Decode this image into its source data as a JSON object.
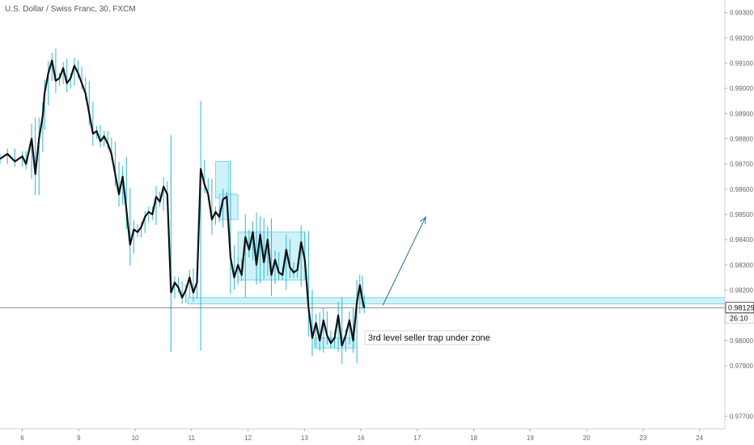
{
  "chart_data": {
    "type": "candlestick",
    "title": "U.S. Dollar / Swiss Franc, 30, FXCM",
    "xlabel": "",
    "ylabel": "",
    "ylim": [
      0.9765,
      0.9935
    ],
    "y_ticks": [
      "0.97700",
      "0.97900",
      "0.98000",
      "0.98200",
      "0.98300",
      "0.98400",
      "0.98500",
      "0.98600",
      "0.98700",
      "0.98800",
      "0.98900",
      "0.99000",
      "0.99100",
      "0.99200",
      "0.99300"
    ],
    "x_ticks": [
      "6",
      "9",
      "10",
      "11",
      "12",
      "13",
      "16",
      "17",
      "18",
      "19",
      "20",
      "23",
      "24"
    ],
    "x_range": [
      5.4,
      24.9
    ],
    "grid": false,
    "last_price": "0.98129",
    "countdown": "26:10",
    "price_path": [
      [
        5.4,
        0.9872
      ],
      [
        5.6,
        0.9874
      ],
      [
        5.8,
        0.9871
      ],
      [
        6.0,
        0.9873
      ],
      [
        6.1,
        0.987
      ],
      [
        6.25,
        0.988
      ],
      [
        6.35,
        0.9866
      ],
      [
        6.45,
        0.988
      ],
      [
        6.55,
        0.9889
      ],
      [
        6.6,
        0.9898
      ],
      [
        6.7,
        0.9906
      ],
      [
        6.8,
        0.9911
      ],
      [
        6.9,
        0.9903
      ],
      [
        7.0,
        0.9904
      ],
      [
        7.1,
        0.9908
      ],
      [
        7.2,
        0.9902
      ],
      [
        7.3,
        0.9904
      ],
      [
        7.4,
        0.9909
      ],
      [
        7.5,
        0.9906
      ],
      [
        7.6,
        0.9902
      ],
      [
        7.7,
        0.9898
      ],
      [
        7.8,
        0.989
      ],
      [
        7.9,
        0.9882
      ],
      [
        8.0,
        0.9883
      ],
      [
        8.1,
        0.9879
      ],
      [
        8.2,
        0.9881
      ],
      [
        8.3,
        0.9878
      ],
      [
        8.4,
        0.9874
      ],
      [
        8.5,
        0.9866
      ],
      [
        8.6,
        0.9858
      ],
      [
        8.7,
        0.9865
      ],
      [
        8.8,
        0.9852
      ],
      [
        8.9,
        0.9838
      ],
      [
        9.0,
        0.9844
      ],
      [
        9.1,
        0.9843
      ],
      [
        9.2,
        0.9845
      ],
      [
        9.3,
        0.9849
      ],
      [
        9.4,
        0.9851
      ],
      [
        9.5,
        0.985
      ],
      [
        9.6,
        0.9857
      ],
      [
        9.7,
        0.9855
      ],
      [
        9.8,
        0.9861
      ],
      [
        9.9,
        0.9858
      ],
      [
        10.0,
        0.9819
      ],
      [
        10.1,
        0.9823
      ],
      [
        10.2,
        0.9821
      ],
      [
        10.3,
        0.9817
      ],
      [
        10.4,
        0.982
      ],
      [
        10.5,
        0.9825
      ],
      [
        10.6,
        0.9819
      ],
      [
        10.7,
        0.9823
      ],
      [
        10.8,
        0.9868
      ],
      [
        10.9,
        0.9862
      ],
      [
        11.0,
        0.9858
      ],
      [
        11.1,
        0.9848
      ],
      [
        11.2,
        0.9851
      ],
      [
        11.3,
        0.9849
      ],
      [
        11.4,
        0.9856
      ],
      [
        11.5,
        0.9857
      ],
      [
        11.6,
        0.9833
      ],
      [
        11.7,
        0.9825
      ],
      [
        11.8,
        0.983
      ],
      [
        11.9,
        0.9826
      ],
      [
        12.0,
        0.9841
      ],
      [
        12.1,
        0.9836
      ],
      [
        12.2,
        0.9843
      ],
      [
        12.3,
        0.983
      ],
      [
        12.4,
        0.9842
      ],
      [
        12.5,
        0.9831
      ],
      [
        12.6,
        0.984
      ],
      [
        12.7,
        0.9826
      ],
      [
        12.8,
        0.9832
      ],
      [
        12.9,
        0.9827
      ],
      [
        13.0,
        0.9826
      ],
      [
        13.1,
        0.9836
      ],
      [
        13.2,
        0.9829
      ],
      [
        13.3,
        0.9827
      ],
      [
        13.4,
        0.9828
      ],
      [
        13.5,
        0.9839
      ],
      [
        13.6,
        0.9832
      ],
      [
        13.7,
        0.9813
      ],
      [
        13.8,
        0.9801
      ],
      [
        13.9,
        0.9807
      ],
      [
        14.0,
        0.98
      ],
      [
        14.1,
        0.9808
      ],
      [
        14.2,
        0.9802
      ],
      [
        14.3,
        0.9799
      ],
      [
        14.4,
        0.9801
      ],
      [
        14.5,
        0.981
      ],
      [
        14.6,
        0.9798
      ],
      [
        14.7,
        0.9802
      ],
      [
        14.8,
        0.9808
      ],
      [
        14.9,
        0.98
      ],
      [
        15.0,
        0.9815
      ],
      [
        15.08,
        0.9822
      ],
      [
        15.15,
        0.9816
      ],
      [
        15.2,
        0.9813
      ]
    ],
    "zones": [
      {
        "x0": 10.45,
        "x1": 24.9,
        "y0": 0.98145,
        "y1": 0.9817
      },
      {
        "x0": 11.2,
        "x1": 11.55,
        "y0": 0.98565,
        "y1": 0.9871
      },
      {
        "x0": 11.3,
        "x1": 11.8,
        "y0": 0.9848,
        "y1": 0.9858
      },
      {
        "x0": 11.8,
        "x1": 13.6,
        "y0": 0.9824,
        "y1": 0.9843
      },
      {
        "x0": 13.85,
        "x1": 14.95,
        "y0": 0.9797,
        "y1": 0.9801
      }
    ],
    "annotations": [
      {
        "text": "3rd level seller trap under zone",
        "x": 15.3,
        "y": 0.98
      }
    ],
    "arrow": {
      "from": [
        15.7,
        0.9814
      ],
      "to": [
        16.85,
        0.9849
      ]
    },
    "colors": {
      "candle": "#111111",
      "wick": "#29b6d6",
      "zone_fill": "#bfeef7",
      "zone_stroke": "#5fcde3",
      "price_line": "#555555"
    }
  }
}
